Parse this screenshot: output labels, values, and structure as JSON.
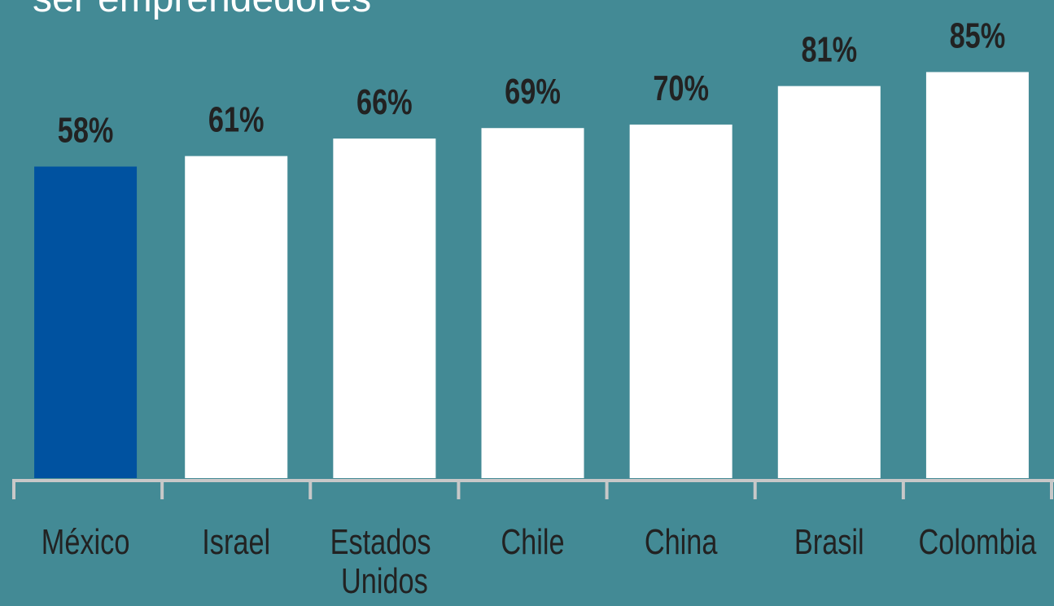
{
  "chart_data": {
    "type": "bar",
    "title": "ser emprendedores",
    "categories": [
      "México",
      "Israel",
      "Estados Unidos",
      "Chile",
      "China",
      "Brasil",
      "Colombia"
    ],
    "values": [
      58,
      61,
      66,
      69,
      70,
      81,
      85
    ],
    "value_labels": [
      "58%",
      "61%",
      "66%",
      "69%",
      "70%",
      "81%",
      "85%"
    ],
    "colors": [
      "#0052a0",
      "#ffffff",
      "#ffffff",
      "#ffffff",
      "#ffffff",
      "#ffffff",
      "#ffffff"
    ],
    "ylim": [
      -31,
      100
    ]
  }
}
